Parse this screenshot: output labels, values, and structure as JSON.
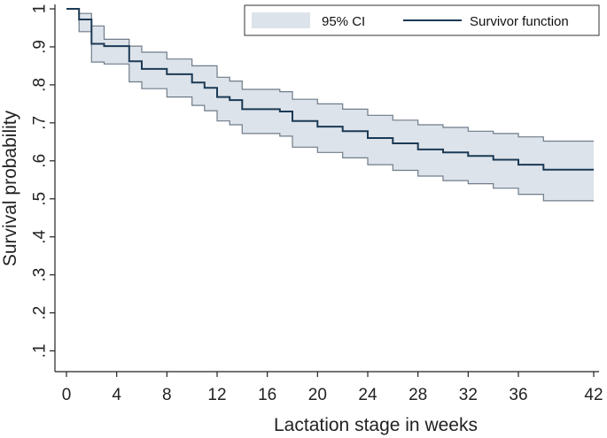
{
  "chart_data": {
    "type": "line",
    "title": "",
    "xlabel": "Lactation stage in weeks",
    "ylabel": "Survival probability",
    "xlim": [
      0,
      42
    ],
    "ylim": [
      0.05,
      1.0
    ],
    "x_ticks": [
      {
        "value": 0,
        "label": "0"
      },
      {
        "value": 4,
        "label": "4"
      },
      {
        "value": 8,
        "label": "8"
      },
      {
        "value": 12,
        "label": "12"
      },
      {
        "value": 16,
        "label": "16"
      },
      {
        "value": 20,
        "label": "20"
      },
      {
        "value": 24,
        "label": "24"
      },
      {
        "value": 28,
        "label": "28"
      },
      {
        "value": 32,
        "label": "32"
      },
      {
        "value": 36,
        "label": "36"
      },
      {
        "value": 42,
        "label": "42"
      }
    ],
    "y_ticks": [
      {
        "value": 1.0,
        "label": "1"
      },
      {
        "value": 0.9,
        "label": ".9"
      },
      {
        "value": 0.8,
        "label": ".8"
      },
      {
        "value": 0.7,
        "label": ".7"
      },
      {
        "value": 0.6,
        "label": ".6"
      },
      {
        "value": 0.5,
        "label": ".5"
      },
      {
        "value": 0.4,
        "label": ".4"
      },
      {
        "value": 0.3,
        "label": ".3"
      },
      {
        "value": 0.2,
        "label": ".2"
      },
      {
        "value": 0.1,
        "label": ".1"
      }
    ],
    "legend": {
      "position": "top-right",
      "entries": [
        {
          "name": "95% CI",
          "kind": "band",
          "color": "#dde3ea",
          "edge": "#6f7c8a"
        },
        {
          "name": "Survivor function",
          "kind": "line",
          "color": "#1b3a55"
        }
      ]
    },
    "series": [
      {
        "name": "Survivor function",
        "type": "step",
        "x": [
          0,
          1,
          2,
          3,
          5,
          6,
          8,
          10,
          11,
          12,
          13,
          14,
          17,
          18,
          20,
          22,
          24,
          26,
          28,
          30,
          32,
          34,
          36,
          38,
          42
        ],
        "values": [
          1.0,
          0.972,
          0.908,
          0.902,
          0.862,
          0.842,
          0.828,
          0.806,
          0.792,
          0.768,
          0.76,
          0.736,
          0.73,
          0.705,
          0.69,
          0.678,
          0.66,
          0.646,
          0.63,
          0.622,
          0.613,
          0.603,
          0.59,
          0.577,
          0.577
        ],
        "color": "#1b3a55"
      },
      {
        "name": "95% CI upper",
        "type": "step",
        "x": [
          0,
          1,
          2,
          3,
          5,
          6,
          8,
          10,
          11,
          12,
          13,
          14,
          17,
          18,
          20,
          22,
          24,
          26,
          28,
          30,
          32,
          34,
          36,
          38,
          42
        ],
        "values": [
          1.0,
          0.988,
          0.955,
          0.92,
          0.902,
          0.886,
          0.868,
          0.85,
          0.85,
          0.82,
          0.81,
          0.788,
          0.782,
          0.762,
          0.75,
          0.736,
          0.72,
          0.707,
          0.695,
          0.688,
          0.678,
          0.672,
          0.663,
          0.652,
          0.652
        ],
        "color": "#6f7c8a"
      },
      {
        "name": "95% CI lower",
        "type": "step",
        "x": [
          0,
          1,
          2,
          3,
          5,
          6,
          8,
          10,
          11,
          12,
          13,
          14,
          17,
          18,
          20,
          22,
          24,
          26,
          28,
          30,
          32,
          34,
          36,
          38,
          42
        ],
        "values": [
          1.0,
          0.94,
          0.86,
          0.855,
          0.808,
          0.79,
          0.768,
          0.746,
          0.732,
          0.705,
          0.695,
          0.672,
          0.665,
          0.636,
          0.622,
          0.608,
          0.59,
          0.575,
          0.56,
          0.548,
          0.54,
          0.528,
          0.512,
          0.495,
          0.495
        ],
        "color": "#6f7c8a"
      }
    ]
  }
}
